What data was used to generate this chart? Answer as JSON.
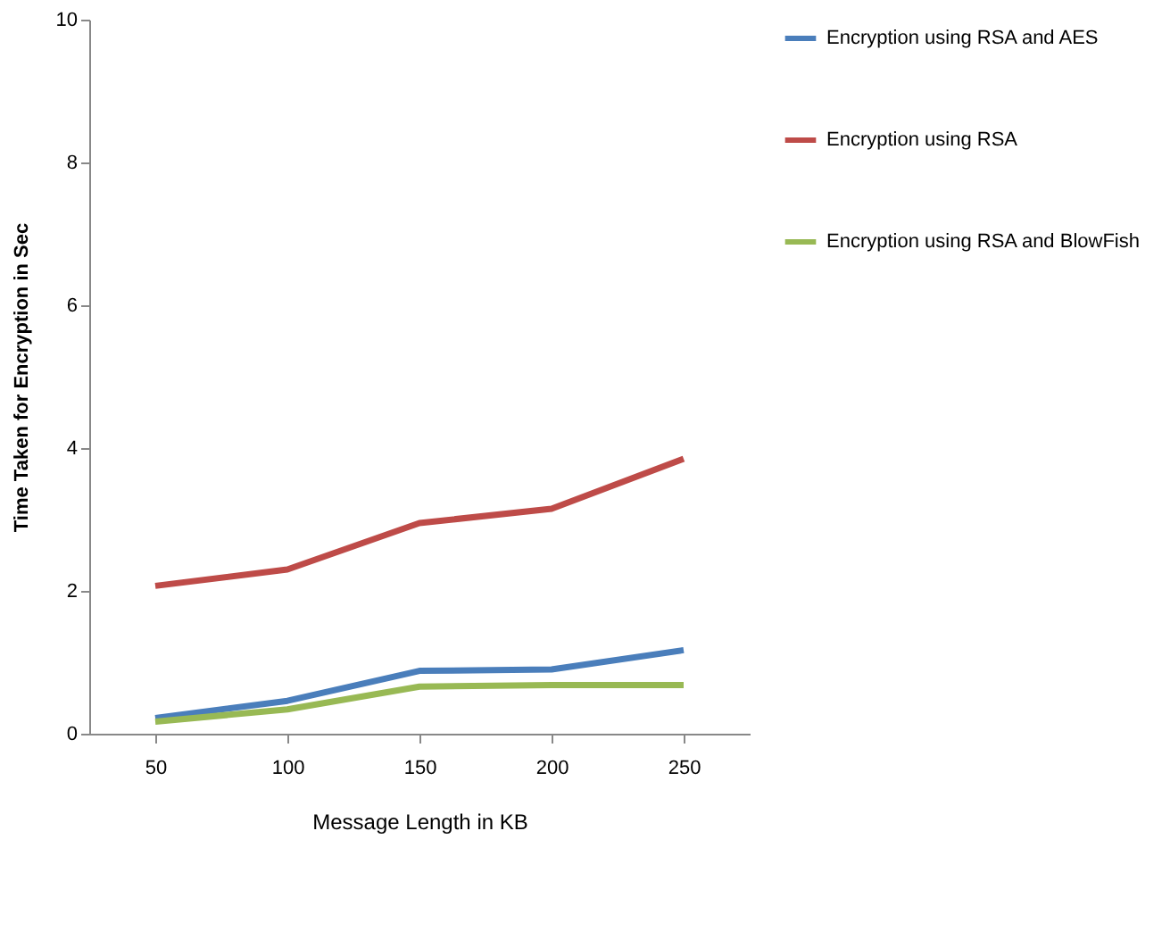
{
  "chart_data": {
    "type": "line",
    "xlabel": "Message Length in KB",
    "ylabel": "Time Taken for Encryption in Sec",
    "categories": [
      "50",
      "100",
      "150",
      "200",
      "250"
    ],
    "series": [
      {
        "name": "Encryption using RSA and AES",
        "color": "#4a7ebb",
        "values": [
          0.22,
          0.46,
          0.88,
          0.9,
          1.17
        ]
      },
      {
        "name": "Encryption using RSA",
        "color": "#be4b48",
        "values": [
          2.07,
          2.3,
          2.95,
          3.15,
          3.85
        ]
      },
      {
        "name": "Encryption using RSA and BlowFish",
        "color": "#98b954",
        "values": [
          0.17,
          0.34,
          0.66,
          0.68,
          0.68
        ]
      }
    ],
    "ylim": [
      0,
      10
    ],
    "yticks": [
      0,
      2,
      4,
      6,
      8,
      10
    ],
    "grid": false,
    "legend": "right",
    "marker": "none",
    "line_style": "solid"
  }
}
